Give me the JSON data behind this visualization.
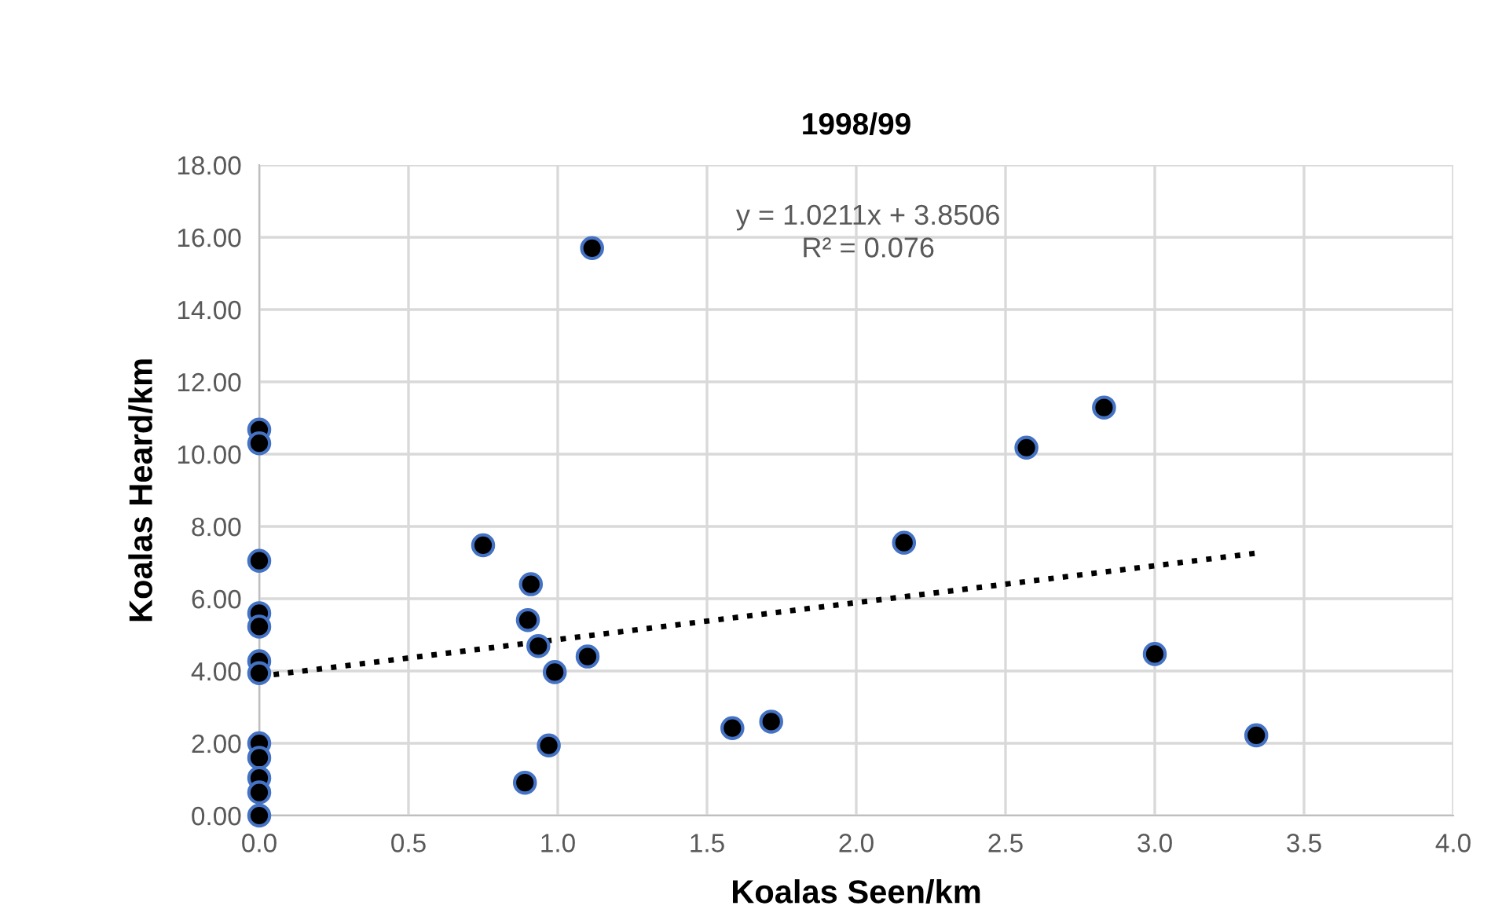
{
  "chart_data": {
    "type": "scatter",
    "title": "1998/99",
    "xlabel": "Koalas Seen/km",
    "ylabel": "Koalas Heard/km",
    "series": [
      {
        "color": "#000000",
        "x": [
          0,
          0,
          0,
          0,
          0,
          0,
          0,
          0,
          0,
          0,
          0,
          0,
          0.75,
          1.115,
          0.91,
          0.9,
          0.935,
          0.99,
          1.1,
          0.97,
          0.89,
          1.585,
          1.715,
          2.16,
          2.57,
          2.83,
          3.0,
          3.34
        ],
        "values": [
          10.68,
          10.3,
          7.05,
          5.6,
          5.23,
          4.27,
          3.94,
          2.0,
          1.6,
          1.04,
          0.64,
          0,
          7.48,
          15.7,
          6.4,
          5.41,
          4.69,
          3.97,
          4.4,
          1.94,
          0.91,
          2.42,
          2.6,
          7.55,
          10.18,
          11.29,
          4.47,
          2.22
        ]
      },
      {
        "type": "line",
        "color": "#000000",
        "line_style": "dotted",
        "marker": "none",
        "x": [
          0,
          3.34
        ],
        "values": [
          3.85,
          7.26
        ]
      }
    ],
    "xlim": [
      0,
      4
    ],
    "ylim": [
      0,
      18
    ],
    "xticks": [
      {
        "value": 0,
        "label": "0.0"
      },
      0.5,
      {
        "value": 1,
        "label": "1.0"
      },
      1.5,
      {
        "value": 2,
        "label": "2.0"
      },
      2.5,
      {
        "value": 3,
        "label": "3.0"
      },
      3.5,
      {
        "value": 4,
        "label": "4.0"
      }
    ],
    "yticks": [
      {
        "value": 0,
        "label": "0.00"
      },
      {
        "value": 2,
        "label": "2.00"
      },
      {
        "value": 4,
        "label": "4.00"
      },
      {
        "value": 6,
        "label": "6.00"
      },
      {
        "value": 8,
        "label": "8.00"
      },
      {
        "value": 10,
        "label": "10.00"
      },
      {
        "value": 12,
        "label": "12.00"
      },
      {
        "value": 14,
        "label": "14.00"
      },
      {
        "value": 16,
        "label": "16.00"
      },
      {
        "value": 18,
        "label": "18.00"
      }
    ],
    "annotations": [
      "y = 1.0211x + 3.8506\nR² = 0.076"
    ],
    "grid": true,
    "marker": "circle",
    "legend": false
  }
}
